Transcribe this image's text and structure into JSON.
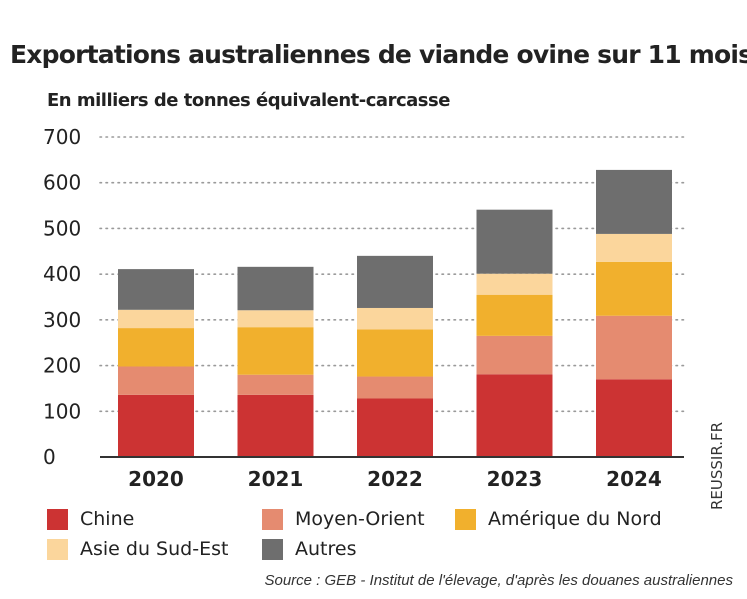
{
  "chart_data": {
    "type": "bar",
    "stacked": true,
    "title": "Exportations australiennes de viande ovine sur 11 mois",
    "subtitle": "En milliers de tonnes équivalent-carcasse",
    "categories": [
      "2020",
      "2021",
      "2022",
      "2023",
      "2024"
    ],
    "series": [
      {
        "name": "Chine",
        "color": "#cc3333",
        "values": [
          136,
          136,
          128,
          181,
          170
        ]
      },
      {
        "name": "Moyen-Orient",
        "color": "#e58b70",
        "values": [
          62,
          44,
          48,
          84,
          139
        ]
      },
      {
        "name": "Amérique du Nord",
        "color": "#f1b02d",
        "values": [
          84,
          104,
          103,
          90,
          118
        ]
      },
      {
        "name": "Asie du Sud-Est",
        "color": "#fbd69c",
        "values": [
          40,
          37,
          47,
          46,
          61
        ]
      },
      {
        "name": "Autres",
        "color": "#6e6e6e",
        "values": [
          89,
          95,
          114,
          140,
          140
        ]
      }
    ],
    "ylim": [
      0,
      700
    ],
    "yticks": [
      "700",
      "600",
      "500",
      "400",
      "300",
      "200",
      "100",
      "0"
    ],
    "xlabel": "",
    "ylabel": "",
    "grid": "dotted horizontal",
    "legend_position": "bottom"
  },
  "source": "Source : GEB - Institut de l'élevage, d'après les douanes australiennes",
  "watermark": "REUSSIR.FR"
}
